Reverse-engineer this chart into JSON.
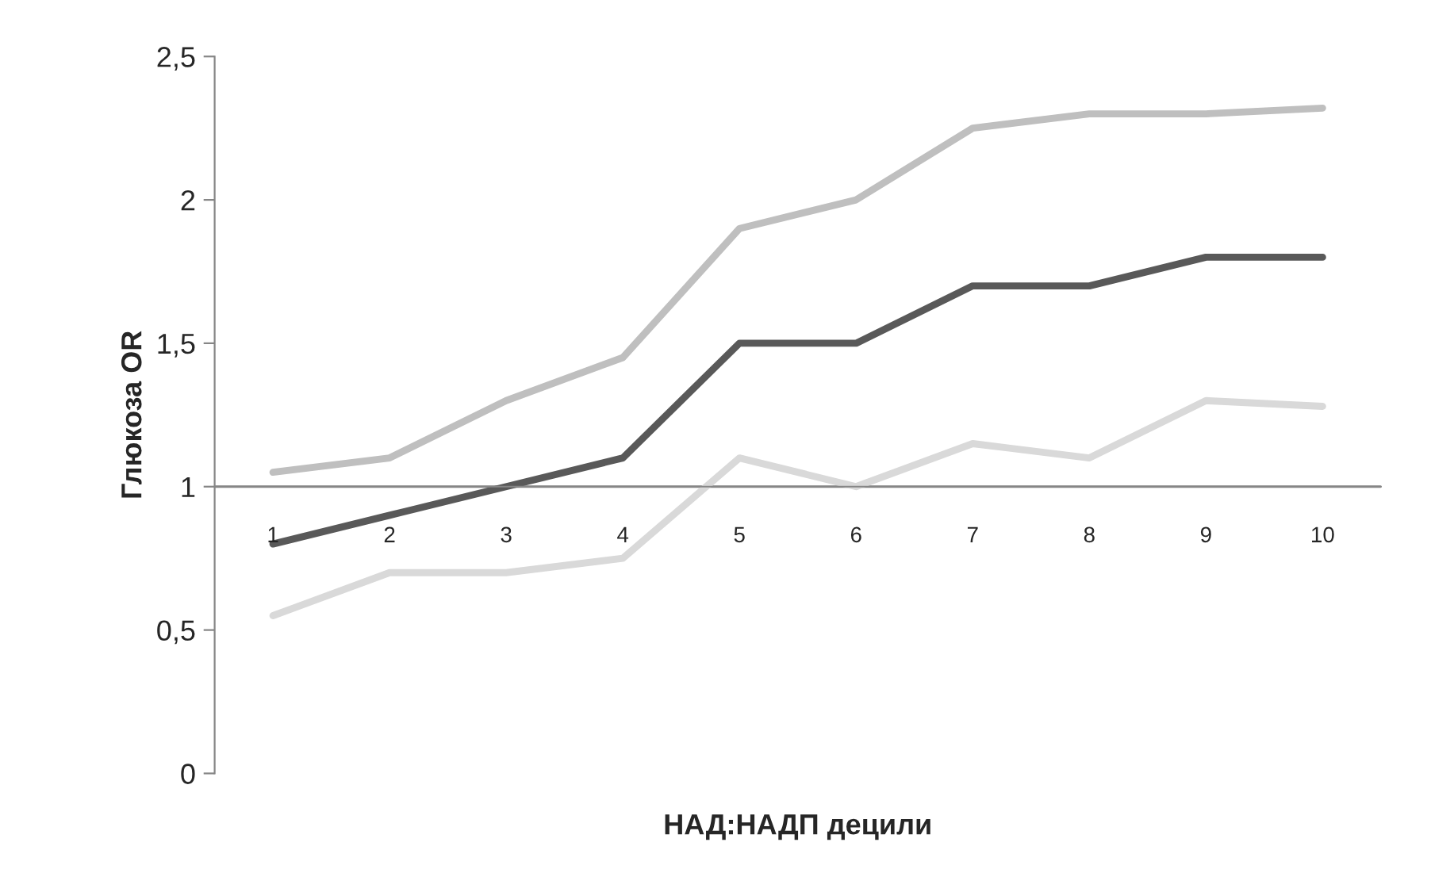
{
  "chart_data": {
    "type": "line",
    "xlabel": "НАД:НАДП децили",
    "ylabel": "Глюкоза OR",
    "categories": [
      "1",
      "2",
      "3",
      "4",
      "5",
      "6",
      "7",
      "8",
      "9",
      "10"
    ],
    "series": [
      {
        "color": "#bfbfbf",
        "values": [
          1.05,
          1.1,
          1.3,
          1.45,
          1.9,
          2.0,
          2.25,
          2.3,
          2.3,
          2.32
        ]
      },
      {
        "color": "#595959",
        "values": [
          0.8,
          0.9,
          1.0,
          1.1,
          1.5,
          1.5,
          1.7,
          1.7,
          1.8,
          1.8
        ]
      },
      {
        "color": "#d9d9d9",
        "values": [
          0.55,
          0.7,
          0.7,
          0.75,
          1.1,
          1.0,
          1.15,
          1.1,
          1.3,
          1.28
        ]
      }
    ],
    "ylim": [
      0,
      2.5
    ],
    "yticks": [
      {
        "value": 0,
        "label": "0"
      },
      {
        "value": 0.5,
        "label": "0,5"
      },
      {
        "value": 1,
        "label": "1"
      },
      {
        "value": 1.5,
        "label": "1,5"
      },
      {
        "value": 2,
        "label": "2"
      },
      {
        "value": 2.5,
        "label": "2,5"
      }
    ],
    "ref_lines": [
      {
        "axis": "y",
        "value": 1,
        "color": "#868686"
      }
    ],
    "grid": false,
    "legend": false,
    "marker": "none",
    "line_style": "solid"
  }
}
